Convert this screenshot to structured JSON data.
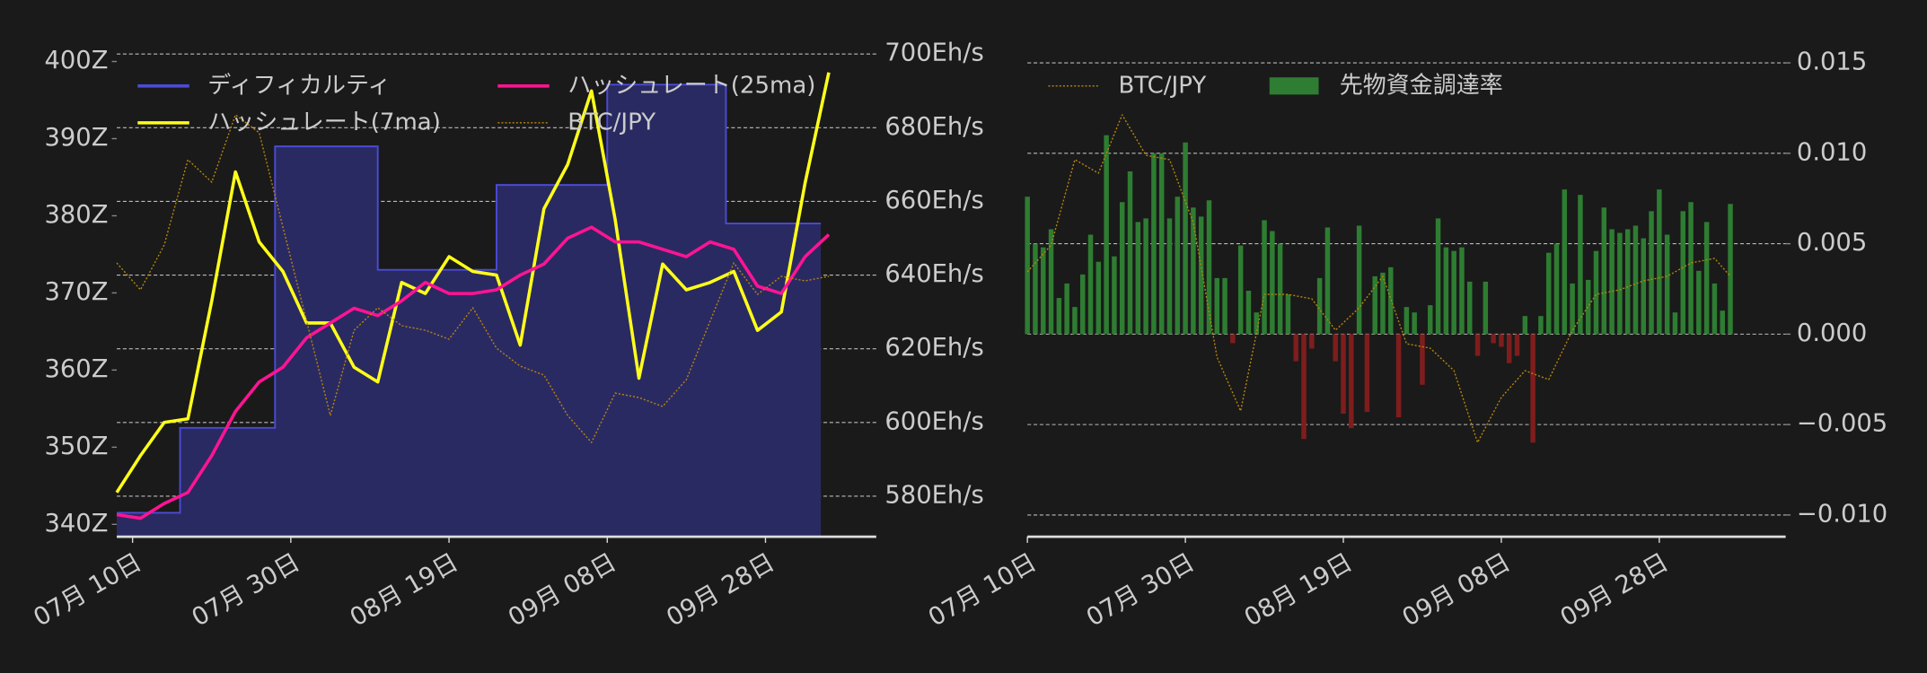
{
  "chart_data": [
    {
      "type": "line",
      "x": [
        "07-08",
        "07-11",
        "07-14",
        "07-17",
        "07-20",
        "07-23",
        "07-26",
        "07-29",
        "08-01",
        "08-04",
        "08-07",
        "08-10",
        "08-13",
        "08-16",
        "08-19",
        "08-22",
        "08-25",
        "08-28",
        "08-31",
        "09-03",
        "09-06",
        "09-09",
        "09-12",
        "09-15",
        "09-18",
        "09-21",
        "09-24",
        "09-27",
        "09-30",
        "10-03",
        "10-06"
      ],
      "xlim": [
        "07-08",
        "10-12"
      ],
      "xticks": [
        {
          "value": "07-10",
          "label": "07月 10日"
        },
        {
          "value": "07-30",
          "label": "07月 30日"
        },
        {
          "value": "08-19",
          "label": "08月 19日"
        },
        {
          "value": "09-08",
          "label": "09月 08日"
        },
        {
          "value": "09-28",
          "label": "09月 28日"
        }
      ],
      "ylim": [
        338.4,
        402.4
      ],
      "yticks": [
        {
          "value": 340,
          "label": "340Z"
        },
        {
          "value": 350,
          "label": "350Z"
        },
        {
          "value": 360,
          "label": "360Z"
        },
        {
          "value": 370,
          "label": "370Z"
        },
        {
          "value": 380,
          "label": "380Z"
        },
        {
          "value": 390,
          "label": "390Z"
        },
        {
          "value": 400,
          "label": "400Z"
        }
      ],
      "y2lim": [
        569,
        703
      ],
      "y2ticks": [
        {
          "value": 580,
          "label": "580Eh/s"
        },
        {
          "value": 600,
          "label": "600Eh/s"
        },
        {
          "value": 620,
          "label": "620Eh/s"
        },
        {
          "value": 640,
          "label": "640Eh/s"
        },
        {
          "value": 660,
          "label": "660Eh/s"
        },
        {
          "value": 680,
          "label": "680Eh/s"
        },
        {
          "value": 700,
          "label": "700Eh/s"
        }
      ],
      "y3lim": [
        3500000,
        4600000
      ],
      "grid": true,
      "grid_axis": "y2",
      "legend": "upper left",
      "legend_columns": 2,
      "series": [
        {
          "name": "ディフィカルティ",
          "kind": "step-area",
          "color": "#4b4bd6",
          "fill": "#2a2a62",
          "axis": "y",
          "x": [
            "07-08",
            "07-16",
            "07-28",
            "08-10",
            "08-25",
            "09-08",
            "09-23",
            "10-05"
          ],
          "values": [
            341.5,
            352.5,
            389,
            373,
            384,
            397,
            379,
            379
          ]
        },
        {
          "name": "ハッシュレート(7ma)",
          "kind": "line",
          "color": "#ffff1a",
          "axis": "y2",
          "values": [
            581,
            591,
            600,
            601,
            633,
            668,
            649,
            641,
            627,
            627,
            615,
            611,
            638,
            635,
            645,
            641,
            640,
            621,
            658,
            670,
            690,
            655,
            612,
            643,
            636,
            638,
            641,
            625,
            630,
            665,
            695
          ]
        },
        {
          "name": "ハッシュレート(25ma)",
          "kind": "line",
          "color": "#ff1493",
          "axis": "y2",
          "values": [
            575,
            574,
            578,
            581,
            591,
            603,
            611,
            615,
            623,
            627,
            631,
            629,
            633,
            638,
            635,
            635,
            636,
            640,
            643,
            650,
            653,
            649,
            649,
            647,
            645,
            649,
            647,
            637,
            635,
            645,
            651
          ]
        },
        {
          "name": "BTC/JPY",
          "kind": "line",
          "dashed": true,
          "color": "#b8860b",
          "axis": "y3",
          "values": [
            4110000,
            4050000,
            4150000,
            4340000,
            4290000,
            4440000,
            4400000,
            4190000,
            3980000,
            3770000,
            3960000,
            4010000,
            3970000,
            3960000,
            3940000,
            4010000,
            3920000,
            3880000,
            3860000,
            3770000,
            3710000,
            3820000,
            3810000,
            3790000,
            3850000,
            3980000,
            4110000,
            4040000,
            4080000,
            4070000,
            4080000
          ]
        }
      ]
    },
    {
      "type": "bar",
      "xlim": [
        "07-10",
        "10-14"
      ],
      "xticks": [
        {
          "value": "07-10",
          "label": "07月 10日"
        },
        {
          "value": "07-30",
          "label": "07月 30日"
        },
        {
          "value": "08-19",
          "label": "08月 19日"
        },
        {
          "value": "09-08",
          "label": "09月 08日"
        },
        {
          "value": "09-28",
          "label": "09月 28日"
        }
      ],
      "ylim": [
        -0.0112,
        0.0161
      ],
      "yticks": [
        {
          "value": -0.01,
          "label": "−0.010"
        },
        {
          "value": -0.005,
          "label": "−0.005"
        },
        {
          "value": 0,
          "label": "0.000"
        },
        0.005,
        {
          "value": 0.01,
          "label": "0.010"
        },
        0.015
      ],
      "y3lim": [
        3500000,
        4600000
      ],
      "grid": true,
      "grid_axis": "y",
      "yaxis_side": "right",
      "legend": "upper left",
      "legend_columns": 2,
      "series": [
        {
          "name": "BTC/JPY",
          "kind": "line",
          "dashed": true,
          "color": "#b8860b",
          "axis": "y3",
          "x": [
            "07-10",
            "07-13",
            "07-16",
            "07-19",
            "07-22",
            "07-25",
            "07-28",
            "07-31",
            "08-03",
            "08-06",
            "08-09",
            "08-12",
            "08-15",
            "08-18",
            "08-21",
            "08-24",
            "08-27",
            "08-30",
            "09-02",
            "09-05",
            "09-08",
            "09-11",
            "09-14",
            "09-17",
            "09-20",
            "09-23",
            "09-26",
            "09-29",
            "10-02",
            "10-05",
            "10-07"
          ],
          "values": [
            4090000,
            4150000,
            4340000,
            4310000,
            4440000,
            4350000,
            4340000,
            4200000,
            3900000,
            3780000,
            4040000,
            4040000,
            4030000,
            3960000,
            4010000,
            4080000,
            3930000,
            3920000,
            3870000,
            3710000,
            3810000,
            3870000,
            3850000,
            3960000,
            4040000,
            4050000,
            4070000,
            4080000,
            4110000,
            4120000,
            4080000
          ]
        },
        {
          "name": "先物資金調達率",
          "kind": "bar",
          "color": "#2e7d32",
          "negative_color": "#7f1d1d",
          "axis": "y",
          "x": [
            "07-10",
            "07-11",
            "07-12",
            "07-13",
            "07-14",
            "07-15",
            "07-16",
            "07-17",
            "07-18",
            "07-19",
            "07-20",
            "07-21",
            "07-22",
            "07-23",
            "07-24",
            "07-25",
            "07-26",
            "07-27",
            "07-28",
            "07-29",
            "07-30",
            "07-31",
            "08-01",
            "08-02",
            "08-03",
            "08-04",
            "08-05",
            "08-06",
            "08-07",
            "08-08",
            "08-09",
            "08-10",
            "08-11",
            "08-12",
            "08-13",
            "08-14",
            "08-15",
            "08-16",
            "08-17",
            "08-18",
            "08-19",
            "08-20",
            "08-21",
            "08-22",
            "08-23",
            "08-24",
            "08-25",
            "08-26",
            "08-27",
            "08-28",
            "08-29",
            "08-30",
            "08-31",
            "09-01",
            "09-02",
            "09-03",
            "09-04",
            "09-05",
            "09-06",
            "09-07",
            "09-08",
            "09-09",
            "09-10",
            "09-11",
            "09-12",
            "09-13",
            "09-14",
            "09-15",
            "09-16",
            "09-17",
            "09-18",
            "09-19",
            "09-20",
            "09-21",
            "09-22",
            "09-23",
            "09-24",
            "09-25",
            "09-26",
            "09-27",
            "09-28",
            "09-29",
            "09-30",
            "10-01",
            "10-02",
            "10-03",
            "10-04",
            "10-05",
            "10-06",
            "10-07"
          ],
          "values": [
            0.0076,
            0.005,
            0.0048,
            0.0058,
            0.002,
            0.0028,
            0.0015,
            0.0033,
            0.0055,
            0.004,
            0.011,
            0.0043,
            0.0073,
            0.009,
            0.0062,
            0.0064,
            0.01,
            0.01,
            0.0064,
            0.0076,
            0.0106,
            0.007,
            0.0065,
            0.0074,
            0.0031,
            0.0031,
            -0.0005,
            0.0049,
            0.0024,
            0.0012,
            0.0063,
            0.0057,
            0.005,
            0.0022,
            -0.0015,
            -0.0058,
            -0.0008,
            0.0031,
            0.0059,
            -0.0015,
            -0.0044,
            -0.0052,
            0.006,
            -0.0043,
            0.0032,
            0.0034,
            0.0037,
            -0.0046,
            0.0015,
            0.0012,
            -0.0028,
            0.0016,
            0.0064,
            0.0048,
            0.0046,
            0.0048,
            0.0029,
            -0.0012,
            0.0029,
            -0.0005,
            -0.0007,
            -0.0016,
            -0.0012,
            0.001,
            -0.006,
            0.001,
            0.0045,
            0.005,
            0.008,
            0.0028,
            0.0077,
            0.003,
            0.0046,
            0.007,
            0.0058,
            0.0056,
            0.0058,
            0.006,
            0.0053,
            0.0068,
            0.008,
            0.0055,
            0.0012,
            0.0068,
            0.0073,
            0.0035,
            0.0062,
            0.0028,
            0.0013,
            0.0072
          ]
        }
      ]
    }
  ]
}
